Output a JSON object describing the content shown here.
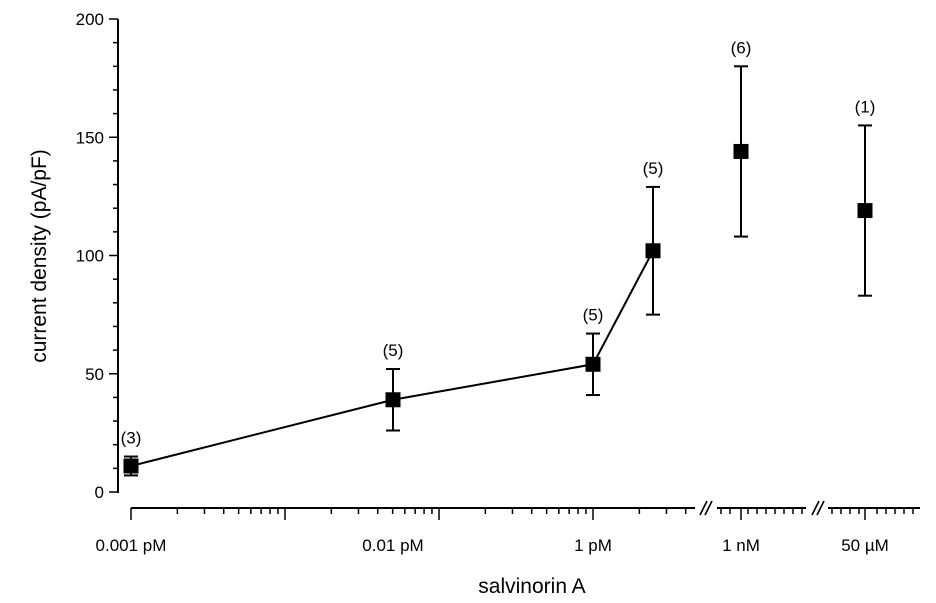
{
  "chart_data": {
    "type": "scatter",
    "xlabel": "salvinorin A",
    "ylabel": "current density (pA/pF)",
    "ylim": [
      0,
      200
    ],
    "yticks": [
      0,
      50,
      100,
      150,
      200
    ],
    "x_axis": "log scale with axis breaks (//) before 1 nM and before 50 µM",
    "xtick_labels": [
      "0.001 pM",
      "0.01 pM",
      "1 pM",
      "1 nM",
      "50 µM"
    ],
    "points": [
      {
        "x": "0.001 pM",
        "y": 11,
        "err_low": 7,
        "err_high": 15,
        "n_label": "(3)",
        "connected": true
      },
      {
        "x": "0.01 pM",
        "y": 39,
        "err_low": 26,
        "err_high": 52,
        "n_label": "(5)",
        "connected": true
      },
      {
        "x": "1 pM",
        "y": 54,
        "err_low": 41,
        "err_high": 67,
        "n_label": "(5)",
        "connected": true
      },
      {
        "x": "2 pM",
        "y": 102,
        "err_low": 75,
        "err_high": 129,
        "n_label": "(5)",
        "connected": true
      },
      {
        "x": "1 nM",
        "y": 144,
        "err_low": 108,
        "err_high": 180,
        "n_label": "(6)",
        "connected": false
      },
      {
        "x": "50 µM",
        "y": 119,
        "err_low": 83,
        "err_high": 155,
        "n_label": "(1)",
        "connected": false
      }
    ],
    "grid": false,
    "legend": "none",
    "colors": {
      "marker": "#000000",
      "line": "#000000"
    }
  }
}
